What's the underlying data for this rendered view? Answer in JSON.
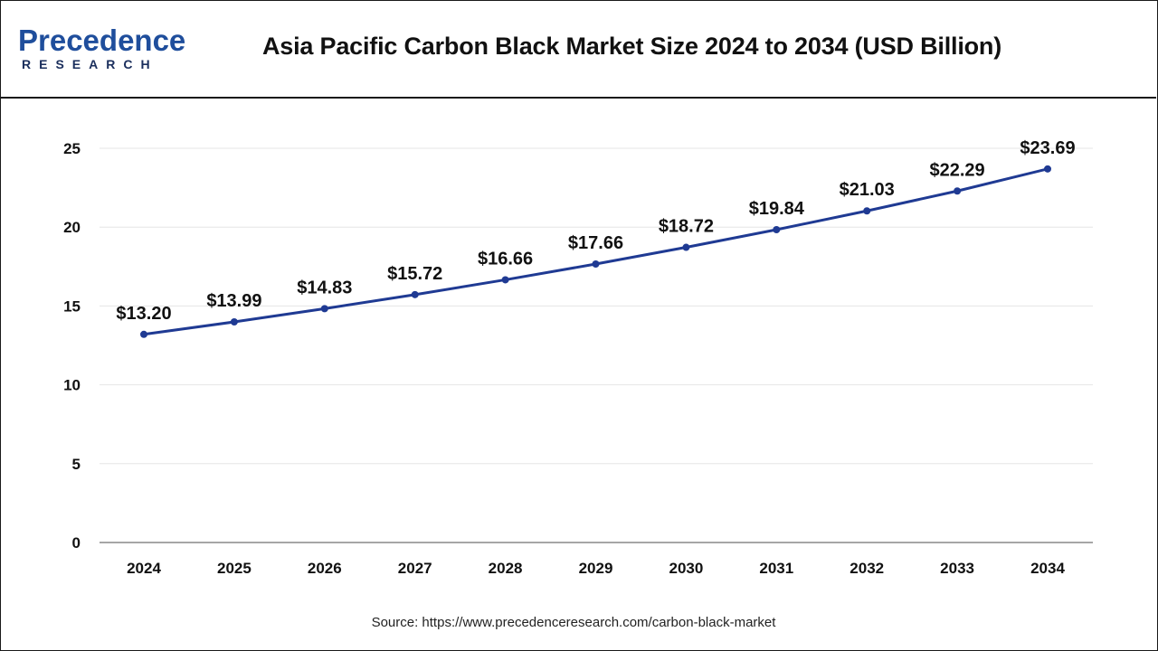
{
  "header": {
    "logo_main": "Precedence",
    "logo_sub": "RESEARCH",
    "title": "Asia Pacific Carbon Black Market Size 2024 to 2034 (USD Billion)"
  },
  "colors": {
    "line": "#1f3a93",
    "logo_blue": "#1f4e9c",
    "logo_dark": "#1a2e5c",
    "grid": "#e6e6e6",
    "axis": "#888888"
  },
  "chart_data": {
    "type": "line",
    "title": "Asia Pacific Carbon Black Market Size 2024 to 2034 (USD Billion)",
    "xlabel": "",
    "ylabel": "",
    "categories": [
      "2024",
      "2025",
      "2026",
      "2027",
      "2028",
      "2029",
      "2030",
      "2031",
      "2032",
      "2033",
      "2034"
    ],
    "values": [
      13.2,
      13.99,
      14.83,
      15.72,
      16.66,
      17.66,
      18.72,
      19.84,
      21.03,
      22.29,
      23.69
    ],
    "data_labels": [
      "$13.20",
      "$13.99",
      "$14.83",
      "$15.72",
      "$16.66",
      "$17.66",
      "$18.72",
      "$19.84",
      "$21.03",
      "$22.29",
      "$23.69"
    ],
    "yticks": [
      "0",
      "5",
      "10",
      "15",
      "20",
      "25"
    ],
    "ylim": [
      0,
      25
    ],
    "grid": true,
    "legend": "none"
  },
  "source": "Source: https://www.precedenceresearch.com/carbon-black-market"
}
